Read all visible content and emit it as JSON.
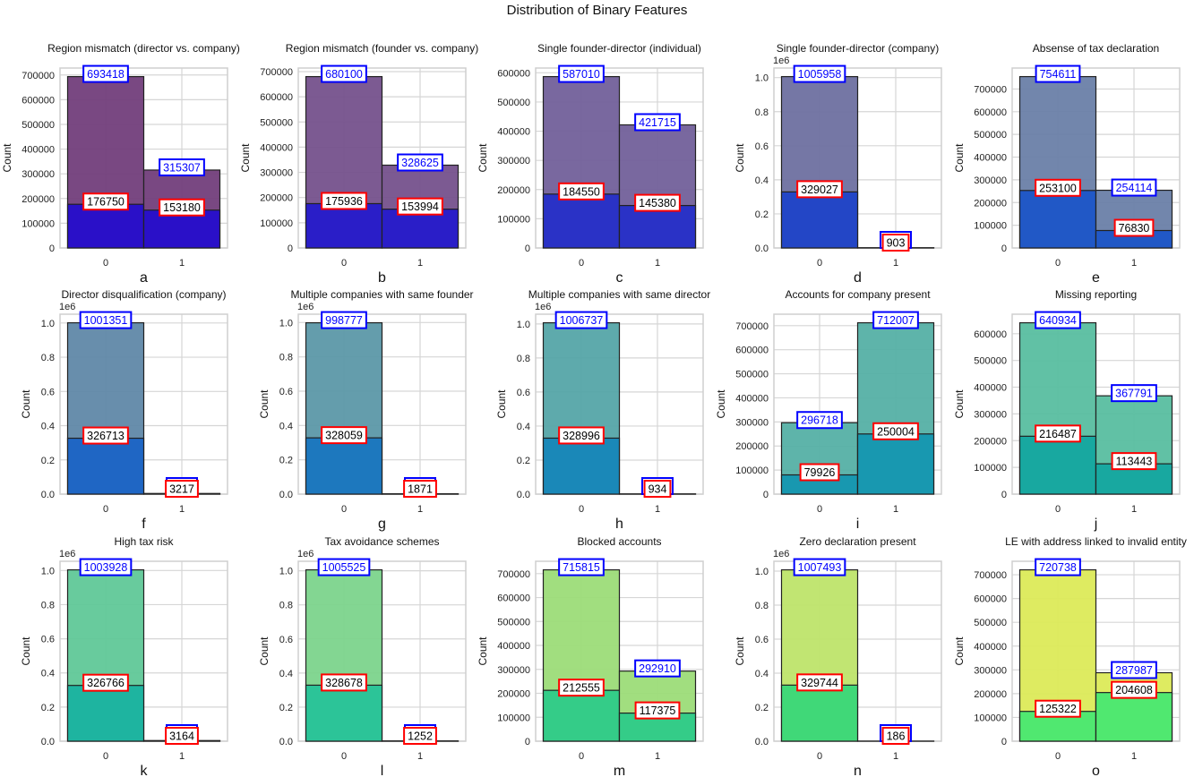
{
  "chart_data": {
    "type": "bar",
    "title": "Distribution of Binary Features",
    "ylabel": "Count",
    "categories": [
      "0",
      "1"
    ],
    "legend": "none",
    "grid": true,
    "label_styles": {
      "total_box": "#0000ff",
      "positive_box": "#ff0000"
    },
    "panels": [
      {
        "letter": "a",
        "title": "Region mismatch (director vs. company)",
        "totals": [
          693418,
          315307
        ],
        "positives": [
          176750,
          153180
        ],
        "scale": "",
        "yticks": [
          0,
          100000,
          200000,
          300000,
          400000,
          500000,
          600000,
          700000
        ],
        "ylim": [
          0,
          728089
        ],
        "color_total": "#723e7b",
        "color_pos": "#2a10c8"
      },
      {
        "letter": "b",
        "title": "Region mismatch (founder vs. company)",
        "totals": [
          680100,
          328625
        ],
        "positives": [
          175936,
          153994
        ],
        "scale": "",
        "yticks": [
          0,
          100000,
          200000,
          300000,
          400000,
          500000,
          600000,
          700000
        ],
        "ylim": [
          0,
          714105
        ],
        "color_total": "#75518c",
        "color_pos": "#2a1ec8"
      },
      {
        "letter": "c",
        "title": "Single founder-director (individual)",
        "totals": [
          587010,
          421715
        ],
        "positives": [
          184550,
          145380
        ],
        "scale": "",
        "yticks": [
          0,
          100000,
          200000,
          300000,
          400000,
          500000,
          600000
        ],
        "ylim": [
          0,
          616361
        ],
        "color_total": "#72609a",
        "color_pos": "#2a32c6"
      },
      {
        "letter": "d",
        "title": "Single founder-director (company)",
        "totals": [
          1005958,
          null
        ],
        "positives": [
          329027,
          903
        ],
        "scale": "1e6",
        "yticks": [
          0,
          0.2,
          0.4,
          0.6,
          0.8,
          1.0
        ],
        "ylim": [
          0,
          1056256
        ],
        "color_total": "#6e70a0",
        "color_pos": "#2346c6"
      },
      {
        "letter": "e",
        "title": "Absense of tax declaration",
        "totals": [
          754611,
          254114
        ],
        "positives": [
          253100,
          76830
        ],
        "scale": "",
        "yticks": [
          0,
          100000,
          200000,
          300000,
          400000,
          500000,
          600000,
          700000
        ],
        "ylim": [
          0,
          792342
        ],
        "color_total": "#6a80a8",
        "color_pos": "#2158c6"
      },
      {
        "letter": "f",
        "title": "Director disqualification (company)",
        "totals": [
          1001351,
          null
        ],
        "positives": [
          326713,
          3217
        ],
        "scale": "1e6",
        "yticks": [
          0,
          0.2,
          0.4,
          0.6,
          0.8,
          1.0
        ],
        "ylim": [
          0,
          1051419
        ],
        "color_total": "#6088a8",
        "color_pos": "#1f66c4"
      },
      {
        "letter": "g",
        "title": "Multiple companies with same founder",
        "totals": [
          998777,
          null
        ],
        "positives": [
          328059,
          1871
        ],
        "scale": "1e6",
        "yticks": [
          0,
          0.2,
          0.4,
          0.6,
          0.8,
          1.0
        ],
        "ylim": [
          0,
          1048716
        ],
        "color_total": "#5c98a8",
        "color_pos": "#1d78be"
      },
      {
        "letter": "h",
        "title": "Multiple companies with same director",
        "totals": [
          1006737,
          null
        ],
        "positives": [
          328996,
          934
        ],
        "scale": "1e6",
        "yticks": [
          0,
          0.2,
          0.4,
          0.6,
          0.8,
          1.0
        ],
        "ylim": [
          0,
          1057074
        ],
        "color_total": "#55a5a8",
        "color_pos": "#1a88b8"
      },
      {
        "letter": "i",
        "title": "Accounts for company present",
        "totals": [
          296718,
          712007
        ],
        "positives": [
          79926,
          250004
        ],
        "scale": "",
        "yticks": [
          0,
          100000,
          200000,
          300000,
          400000,
          500000,
          600000,
          700000
        ],
        "ylim": [
          0,
          747607
        ],
        "color_total": "#55b0a5",
        "color_pos": "#1898b0"
      },
      {
        "letter": "j",
        "title": "Missing reporting",
        "totals": [
          640934,
          367791
        ],
        "positives": [
          216487,
          113443
        ],
        "scale": "",
        "yticks": [
          0,
          100000,
          200000,
          300000,
          400000,
          500000,
          600000
        ],
        "ylim": [
          0,
          672981
        ],
        "color_total": "#58bea0",
        "color_pos": "#18a8a0"
      },
      {
        "letter": "k",
        "title": "High tax risk",
        "totals": [
          1003928,
          null
        ],
        "positives": [
          326766,
          3164
        ],
        "scale": "1e6",
        "yticks": [
          0,
          0.2,
          0.4,
          0.6,
          0.8,
          1.0
        ],
        "ylim": [
          0,
          1054124
        ],
        "color_total": "#60c898",
        "color_pos": "#1eb4a0"
      },
      {
        "letter": "l",
        "title": "Tax avoidance schemes",
        "totals": [
          1005525,
          null
        ],
        "positives": [
          328678,
          1252
        ],
        "scale": "1e6",
        "yticks": [
          0,
          0.2,
          0.4,
          0.6,
          0.8,
          1.0
        ],
        "ylim": [
          0,
          1055801
        ],
        "color_total": "#7cd48c",
        "color_pos": "#2cc498"
      },
      {
        "letter": "m",
        "title": "Blocked accounts",
        "totals": [
          715815,
          292910
        ],
        "positives": [
          212555,
          117375
        ],
        "scale": "",
        "yticks": [
          0,
          100000,
          200000,
          300000,
          400000,
          500000,
          600000,
          700000
        ],
        "ylim": [
          0,
          751606
        ],
        "color_total": "#9cdc78",
        "color_pos": "#34cc88"
      },
      {
        "letter": "n",
        "title": "Zero declaration present",
        "totals": [
          1007493,
          null
        ],
        "positives": [
          329744,
          186
        ],
        "scale": "1e6",
        "yticks": [
          0,
          0.2,
          0.4,
          0.6,
          0.8,
          1.0
        ],
        "ylim": [
          0,
          1057868
        ],
        "color_total": "#bee46a",
        "color_pos": "#40d878"
      },
      {
        "letter": "o",
        "title": "LE with address linked to invalid entity",
        "totals": [
          720738,
          287987
        ],
        "positives": [
          125322,
          204608
        ],
        "scale": "",
        "yticks": [
          0,
          100000,
          200000,
          300000,
          400000,
          500000,
          600000,
          700000
        ],
        "ylim": [
          0,
          756775
        ],
        "color_total": "#dcea58",
        "color_pos": "#50e870"
      }
    ]
  }
}
